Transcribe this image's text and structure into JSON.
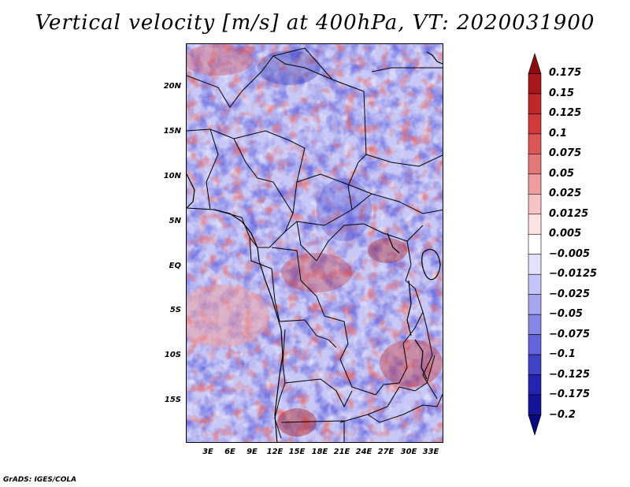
{
  "title": "Vertical velocity [m/s] at 400hPa, VT: 2020031900",
  "credit": "GrADS: IGES/COLA",
  "lat_labels": [
    "20N",
    "15N",
    "10N",
    "5N",
    "EQ",
    "5S",
    "10S",
    "15S"
  ],
  "lon_labels": [
    "3E",
    "6E",
    "9E",
    "12E",
    "15E",
    "18E",
    "21E",
    "24E",
    "27E",
    "30E",
    "33E"
  ],
  "colorbar": {
    "levels": [
      "0.175",
      "0.15",
      "0.125",
      "0.1",
      "0.075",
      "0.05",
      "0.025",
      "0.0125",
      "0.005",
      "−0.005",
      "−0.0125",
      "−0.025",
      "−0.05",
      "−0.075",
      "−0.1",
      "−0.125",
      "−0.175",
      "−0.2"
    ],
    "colors": [
      "#8c0d0d",
      "#a81818",
      "#be2828",
      "#d03a3a",
      "#dc5656",
      "#e47878",
      "#ee9e9e",
      "#f6c4c4",
      "#fce4e4",
      "#ffffff",
      "#e2e2fc",
      "#c4c4f8",
      "#a6a6f0",
      "#8686e6",
      "#6464dc",
      "#4242c8",
      "#2424b0",
      "#141498",
      "#0a0a7e"
    ]
  },
  "colors": {
    "positive": "#d03a3a",
    "negative": "#6464dc",
    "background": "#ffffff",
    "text": "#000000"
  }
}
